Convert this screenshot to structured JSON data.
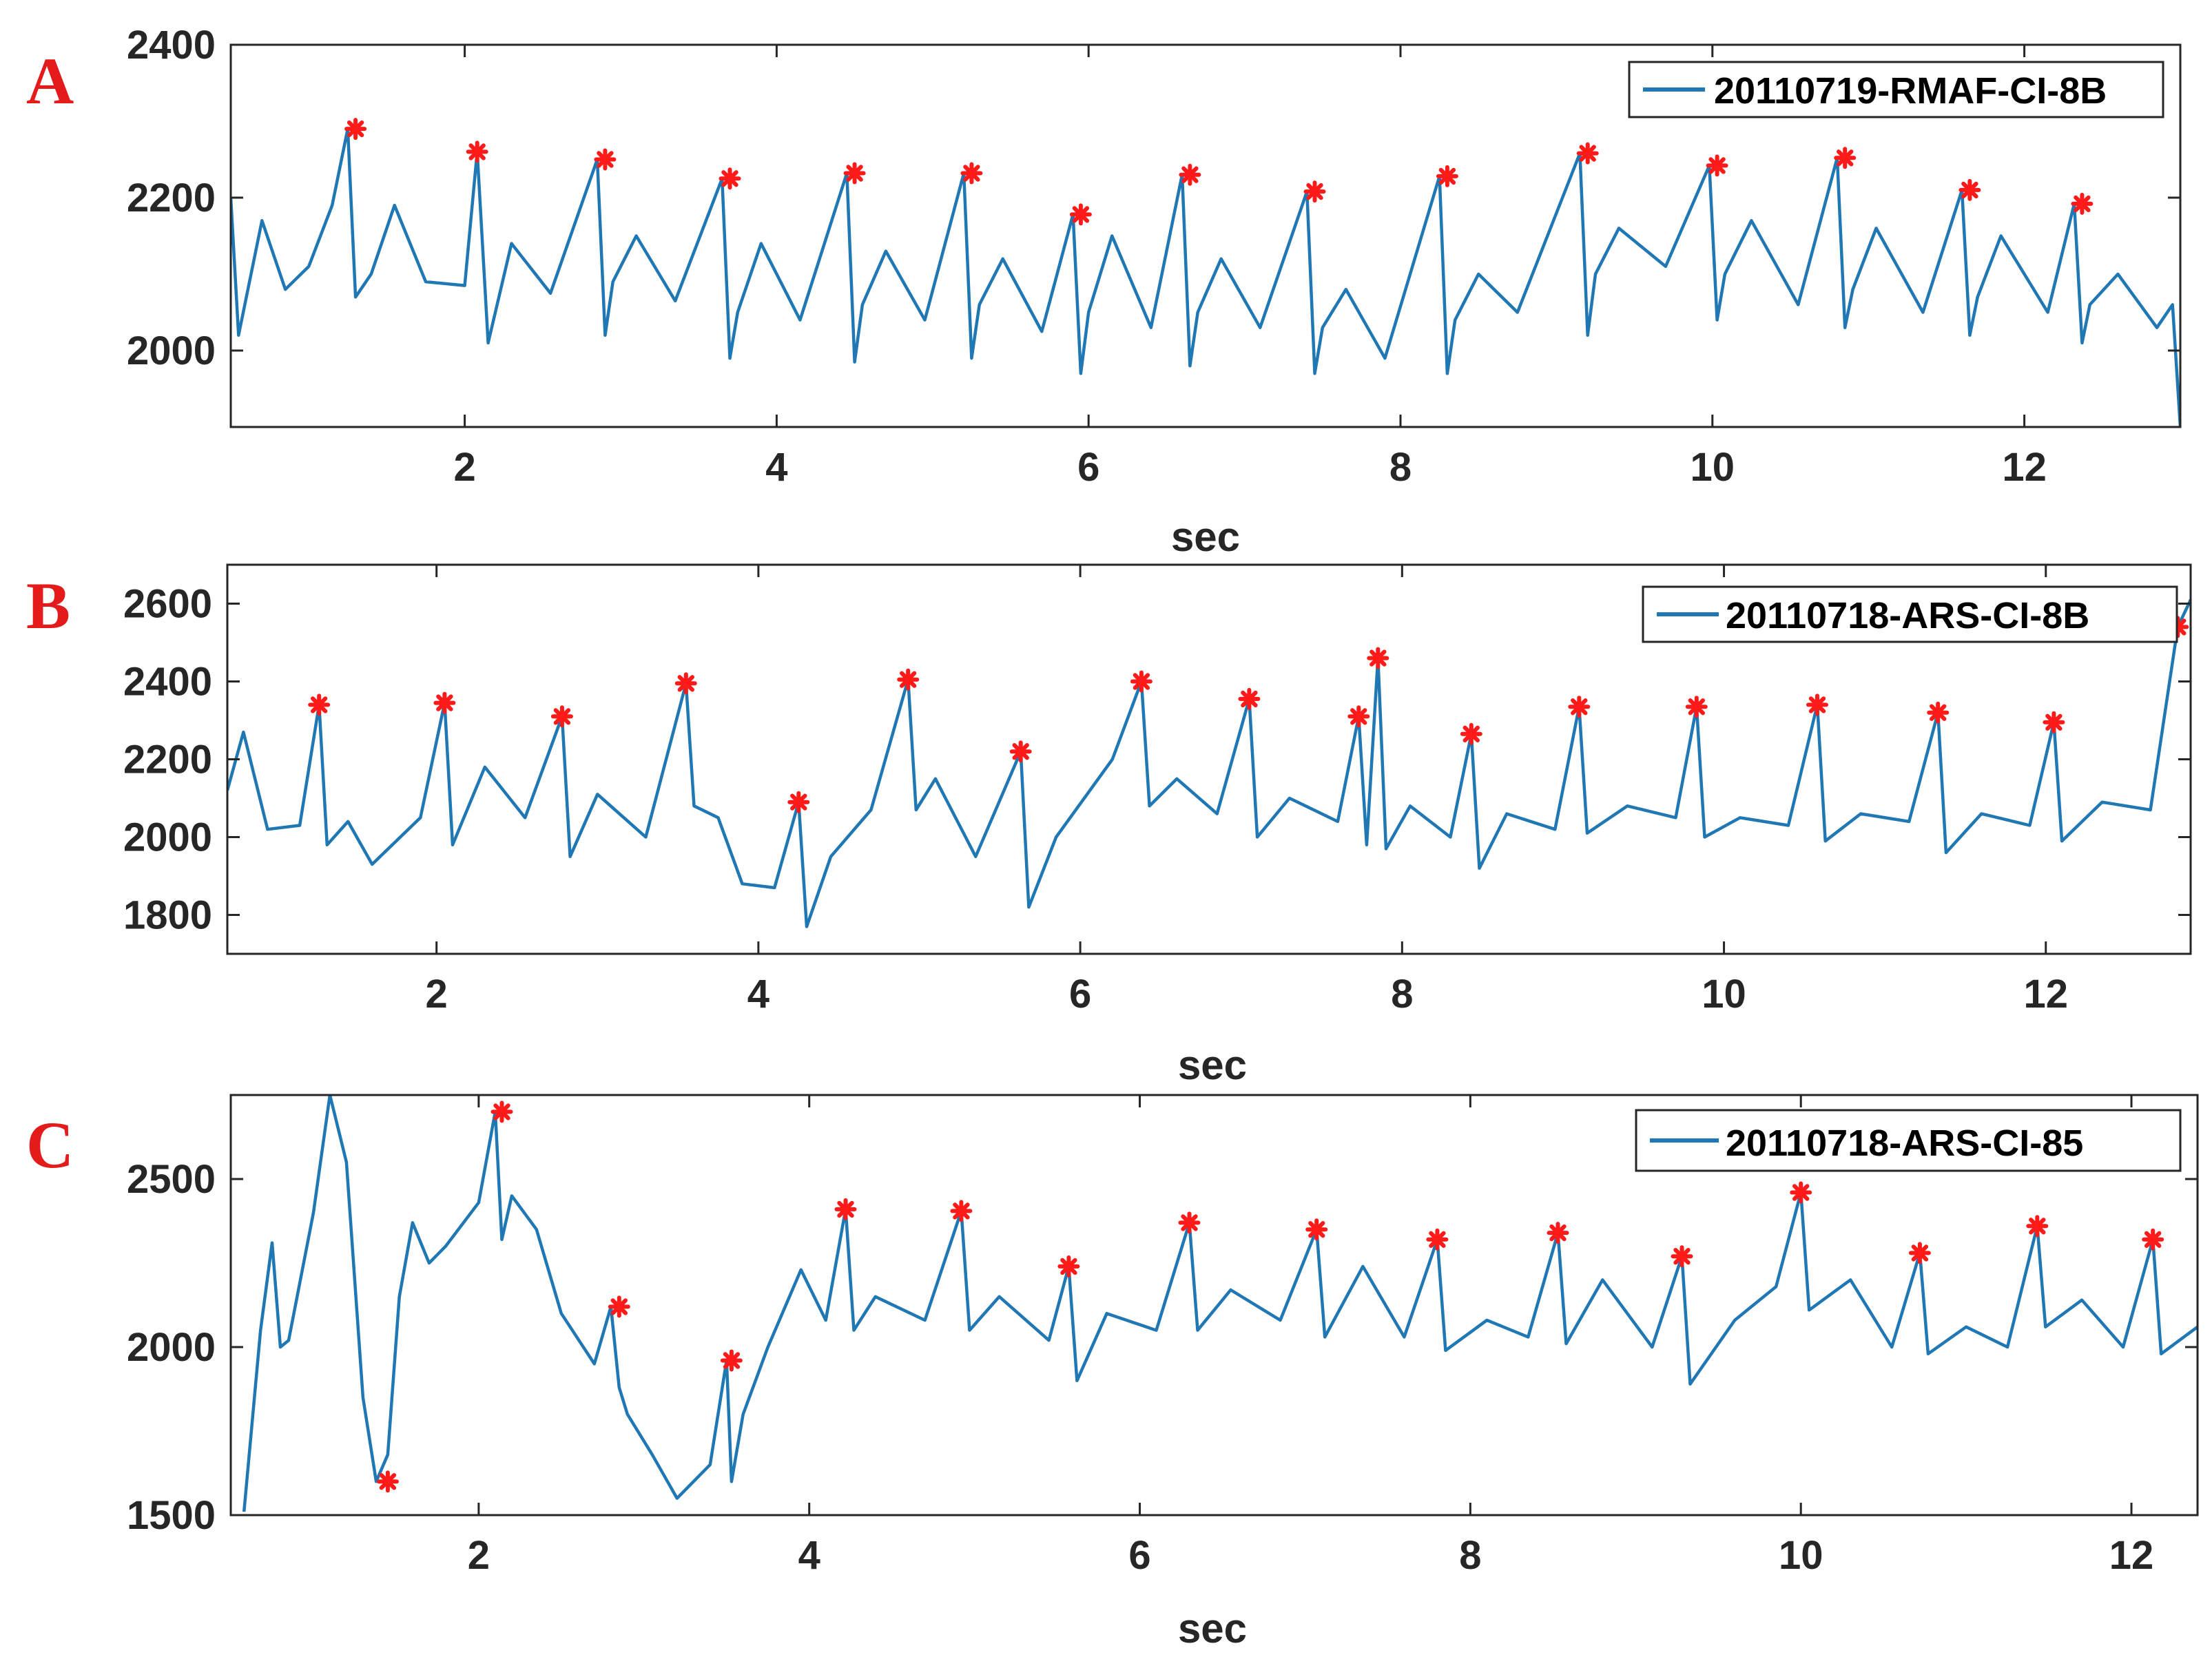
{
  "colors": {
    "signal": "#1f77b4",
    "peak": "#ff1a1a",
    "axis": "#262626",
    "letter": "#e31b1b"
  },
  "chart_data": [
    {
      "type": "line",
      "panel_label": "A",
      "legend": "20110719-RMAF-CI-8B",
      "xlabel": "sec",
      "ylabel": "",
      "xlim": [
        0.5,
        13.0
      ],
      "ylim": [
        1900,
        2400
      ],
      "xticks": [
        "2",
        "4",
        "6",
        "8",
        "10",
        "12"
      ],
      "xtick_values": [
        2,
        4,
        6,
        8,
        10,
        12
      ],
      "yticks": [
        "2000",
        "2200",
        "2400"
      ],
      "ytick_values": [
        2000,
        2200,
        2400
      ],
      "series": [
        {
          "name": "20110719-RMAF-CI-8B",
          "x": [
            0.5,
            0.55,
            0.7,
            0.85,
            1.0,
            1.15,
            1.25,
            1.3,
            1.4,
            1.55,
            1.75,
            2.0,
            2.08,
            2.15,
            2.3,
            2.55,
            2.85,
            2.9,
            2.95,
            3.1,
            3.35,
            3.65,
            3.7,
            3.75,
            3.9,
            4.15,
            4.45,
            4.5,
            4.55,
            4.7,
            4.95,
            5.2,
            5.25,
            5.3,
            5.45,
            5.7,
            5.9,
            5.95,
            6.0,
            6.15,
            6.4,
            6.6,
            6.65,
            6.7,
            6.85,
            7.1,
            7.4,
            7.45,
            7.5,
            7.65,
            7.9,
            8.25,
            8.3,
            8.35,
            8.5,
            8.75,
            9.15,
            9.2,
            9.25,
            9.4,
            9.7,
            9.98,
            10.03,
            10.08,
            10.25,
            10.55,
            10.8,
            10.85,
            10.9,
            11.05,
            11.35,
            11.6,
            11.65,
            11.7,
            11.85,
            12.15,
            12.32,
            12.37,
            12.42,
            12.6,
            12.85,
            12.95,
            13.0
          ],
          "y": [
            2200,
            2020,
            2170,
            2080,
            2110,
            2190,
            2290,
            2070,
            2100,
            2190,
            2090,
            2085,
            2260,
            2010,
            2140,
            2075,
            2250,
            2020,
            2090,
            2150,
            2065,
            2225,
            1990,
            2050,
            2140,
            2040,
            2232,
            1985,
            2060,
            2130,
            2040,
            2232,
            1990,
            2060,
            2120,
            2025,
            2178,
            1970,
            2050,
            2150,
            2030,
            2230,
            1980,
            2050,
            2120,
            2030,
            2208,
            1970,
            2030,
            2080,
            1990,
            2228,
            1970,
            2040,
            2100,
            2050,
            2258,
            2020,
            2100,
            2160,
            2110,
            2242,
            2040,
            2100,
            2170,
            2060,
            2252,
            2030,
            2080,
            2160,
            2050,
            2210,
            2020,
            2070,
            2150,
            2050,
            2192,
            2010,
            2060,
            2100,
            2030,
            2060,
            1900
          ]
        }
      ],
      "peaks": {
        "x": [
          1.3,
          2.08,
          2.9,
          3.7,
          4.5,
          5.25,
          5.95,
          6.65,
          7.45,
          8.3,
          9.2,
          10.03,
          10.85,
          11.65,
          12.37
        ],
        "y": [
          2290,
          2260,
          2250,
          2225,
          2232,
          2232,
          2178,
          2230,
          2208,
          2228,
          2258,
          2242,
          2252,
          2210,
          2192
        ]
      }
    },
    {
      "type": "line",
      "panel_label": "B",
      "legend": "20110718-ARS-CI-8B",
      "xlabel": "sec",
      "ylabel": "",
      "xlim": [
        0.7,
        12.9
      ],
      "ylim": [
        1700,
        2700
      ],
      "xticks": [
        "2",
        "4",
        "6",
        "8",
        "10",
        "12"
      ],
      "xtick_values": [
        2,
        4,
        6,
        8,
        10,
        12
      ],
      "yticks": [
        "1800",
        "2000",
        "2200",
        "2400",
        "2600"
      ],
      "ytick_values": [
        1800,
        2000,
        2200,
        2400,
        2600
      ],
      "series": [
        {
          "name": "20110718-ARS-CI-8B",
          "x": [
            0.7,
            0.8,
            0.95,
            1.15,
            1.27,
            1.32,
            1.45,
            1.6,
            1.9,
            2.05,
            2.1,
            2.3,
            2.55,
            2.78,
            2.83,
            3.0,
            3.3,
            3.55,
            3.6,
            3.75,
            3.9,
            4.1,
            4.25,
            4.3,
            4.45,
            4.7,
            4.93,
            4.98,
            5.1,
            5.35,
            5.63,
            5.68,
            5.85,
            6.2,
            6.38,
            6.43,
            6.6,
            6.85,
            7.05,
            7.1,
            7.3,
            7.6,
            7.73,
            7.78,
            7.85,
            7.9,
            8.05,
            8.3,
            8.43,
            8.48,
            8.65,
            8.95,
            9.1,
            9.15,
            9.4,
            9.7,
            9.83,
            9.88,
            10.1,
            10.4,
            10.58,
            10.63,
            10.85,
            11.15,
            11.33,
            11.38,
            11.6,
            11.9,
            12.05,
            12.1,
            12.35,
            12.65,
            12.82,
            12.9
          ],
          "y": [
            2120,
            2270,
            2020,
            2030,
            2340,
            1980,
            2040,
            1930,
            2050,
            2345,
            1980,
            2180,
            2050,
            2310,
            1950,
            2110,
            2000,
            2395,
            2080,
            2050,
            1880,
            1870,
            2090,
            1770,
            1950,
            2070,
            2405,
            2070,
            2150,
            1950,
            2220,
            1820,
            2000,
            2200,
            2400,
            2080,
            2150,
            2060,
            2355,
            2000,
            2100,
            2040,
            2310,
            1980,
            2460,
            1970,
            2080,
            2000,
            2265,
            1920,
            2060,
            2020,
            2335,
            2010,
            2080,
            2050,
            2335,
            2000,
            2050,
            2030,
            2340,
            1990,
            2060,
            2040,
            2320,
            1960,
            2060,
            2030,
            2295,
            1990,
            2090,
            2070,
            2540,
            2610
          ]
        }
      ],
      "peaks": {
        "x": [
          1.27,
          2.05,
          2.78,
          3.55,
          4.25,
          4.93,
          5.63,
          6.38,
          7.05,
          7.73,
          7.85,
          8.43,
          9.1,
          9.83,
          10.58,
          11.33,
          12.05,
          12.82
        ],
        "y": [
          2340,
          2345,
          2310,
          2395,
          2090,
          2405,
          2220,
          2400,
          2355,
          2310,
          2460,
          2265,
          2335,
          2335,
          2340,
          2320,
          2295,
          2540
        ]
      }
    },
    {
      "type": "line",
      "panel_label": "C",
      "legend": "20110718-ARS-CI-85",
      "xlabel": "sec",
      "ylabel": "",
      "xlim": [
        0.5,
        12.4
      ],
      "ylim": [
        1500,
        2750
      ],
      "xticks": [
        "2",
        "4",
        "6",
        "8",
        "10",
        "12"
      ],
      "xtick_values": [
        2,
        4,
        6,
        8,
        10,
        12
      ],
      "yticks": [
        "1500",
        "2000",
        "2500"
      ],
      "ytick_values": [
        1500,
        2000,
        2500
      ],
      "series": [
        {
          "name": "20110718-ARS-CI-85",
          "x": [
            0.58,
            0.68,
            0.75,
            0.8,
            0.85,
            1.0,
            1.1,
            1.2,
            1.3,
            1.38,
            1.45,
            1.52,
            1.6,
            1.7,
            1.8,
            2.0,
            2.1,
            2.14,
            2.2,
            2.35,
            2.5,
            2.7,
            2.8,
            2.85,
            2.9,
            3.05,
            3.2,
            3.4,
            3.5,
            3.53,
            3.6,
            3.75,
            3.95,
            4.1,
            4.22,
            4.27,
            4.4,
            4.7,
            4.92,
            4.97,
            5.15,
            5.45,
            5.57,
            5.62,
            5.8,
            6.1,
            6.3,
            6.35,
            6.55,
            6.85,
            7.07,
            7.12,
            7.35,
            7.6,
            7.8,
            7.85,
            8.1,
            8.35,
            8.53,
            8.58,
            8.8,
            9.1,
            9.28,
            9.33,
            9.6,
            9.85,
            10.0,
            10.05,
            10.3,
            10.55,
            10.72,
            10.77,
            11.0,
            11.25,
            11.43,
            11.48,
            11.7,
            11.95,
            12.13,
            12.18,
            12.4
          ],
          "y": [
            1510,
            2050,
            2310,
            2000,
            2020,
            2400,
            2750,
            2550,
            1850,
            1600,
            1680,
            2150,
            2370,
            2250,
            2300,
            2430,
            2700,
            2320,
            2450,
            2350,
            2100,
            1950,
            2120,
            1880,
            1800,
            1680,
            1550,
            1650,
            1960,
            1600,
            1800,
            2000,
            2230,
            2080,
            2410,
            2050,
            2150,
            2080,
            2405,
            2050,
            2150,
            2020,
            2240,
            1900,
            2100,
            2050,
            2370,
            2050,
            2170,
            2080,
            2350,
            2030,
            2240,
            2030,
            2320,
            1990,
            2080,
            2030,
            2340,
            2010,
            2200,
            2000,
            2270,
            1890,
            2080,
            2180,
            2460,
            2110,
            2200,
            2000,
            2280,
            1980,
            2060,
            2000,
            2360,
            2060,
            2140,
            2000,
            2320,
            1980,
            2060
          ]
        }
      ],
      "peaks": {
        "x": [
          1.45,
          2.14,
          2.85,
          3.53,
          4.22,
          4.92,
          5.57,
          6.3,
          7.07,
          7.8,
          8.53,
          9.28,
          10.0,
          10.72,
          11.43,
          12.13
        ],
        "y": [
          1600,
          2700,
          2120,
          1960,
          2410,
          2405,
          2240,
          2370,
          2350,
          2320,
          2340,
          2270,
          2460,
          2280,
          2360,
          2320
        ]
      }
    }
  ]
}
